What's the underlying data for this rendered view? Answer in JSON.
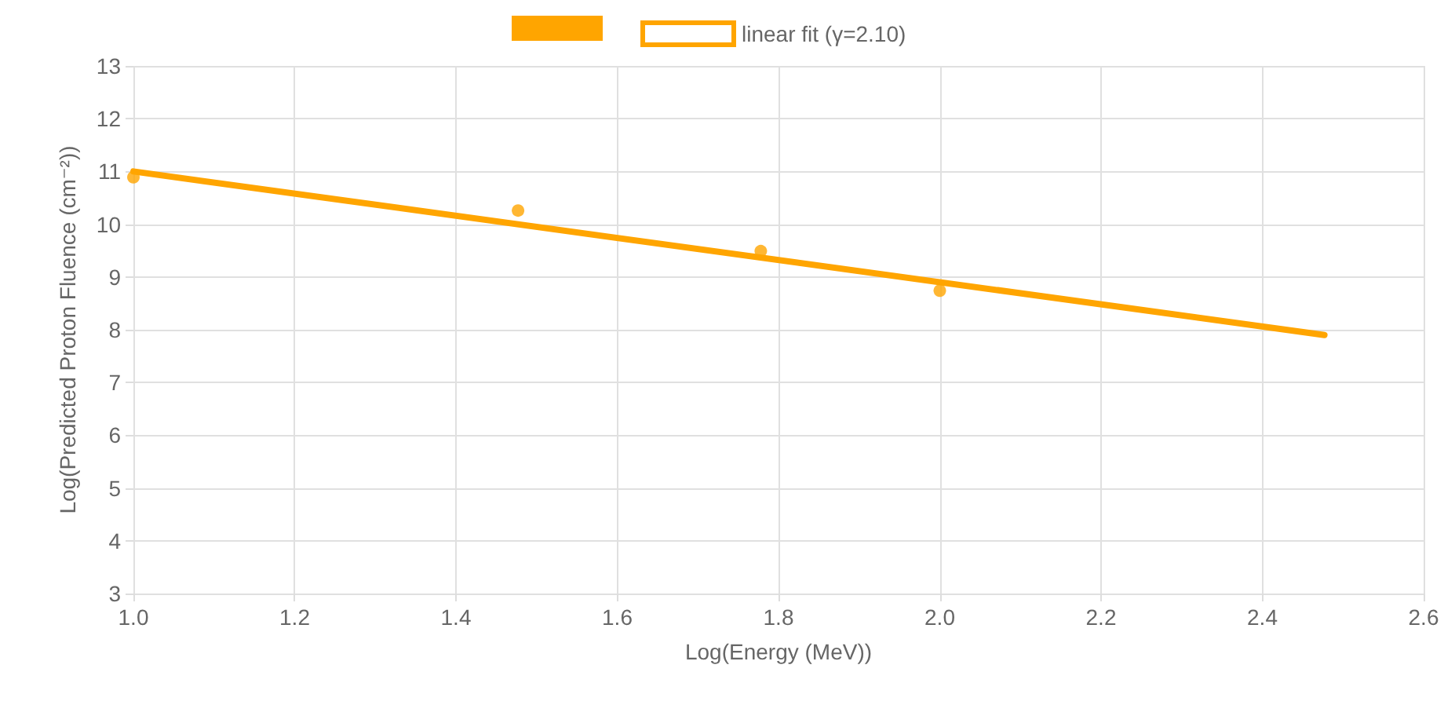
{
  "chart_data": {
    "type": "scatter",
    "xlabel": "Log(Energy (MeV))",
    "ylabel": "Log(Predicted Proton Fluence (cm⁻²))",
    "series": [
      {
        "color": "#ffa500",
        "marker": "circle",
        "x": [
          1.0,
          1.477,
          1.778,
          2.0
        ],
        "values": [
          10.89,
          10.26,
          9.49,
          8.74
        ]
      },
      {
        "type": "line",
        "name": "linear fit (γ=2.10)",
        "color": "#ffa500",
        "marker": "none",
        "line_style": "solid",
        "x": [
          1.0,
          2.477
        ],
        "values": [
          11.0,
          7.9
        ]
      }
    ],
    "xlim": [
      1.0,
      2.6
    ],
    "xticks": [
      {
        "value": 1.0,
        "label": "1.0"
      },
      1.2,
      1.4,
      1.6,
      1.8,
      {
        "value": 2.0,
        "label": "2.0"
      },
      2.2,
      2.4,
      2.6
    ],
    "ylim": [
      3,
      13
    ],
    "yticks": [
      3,
      4,
      5,
      6,
      7,
      8,
      9,
      10,
      11,
      12,
      13
    ],
    "grid": true,
    "legend": "top"
  }
}
